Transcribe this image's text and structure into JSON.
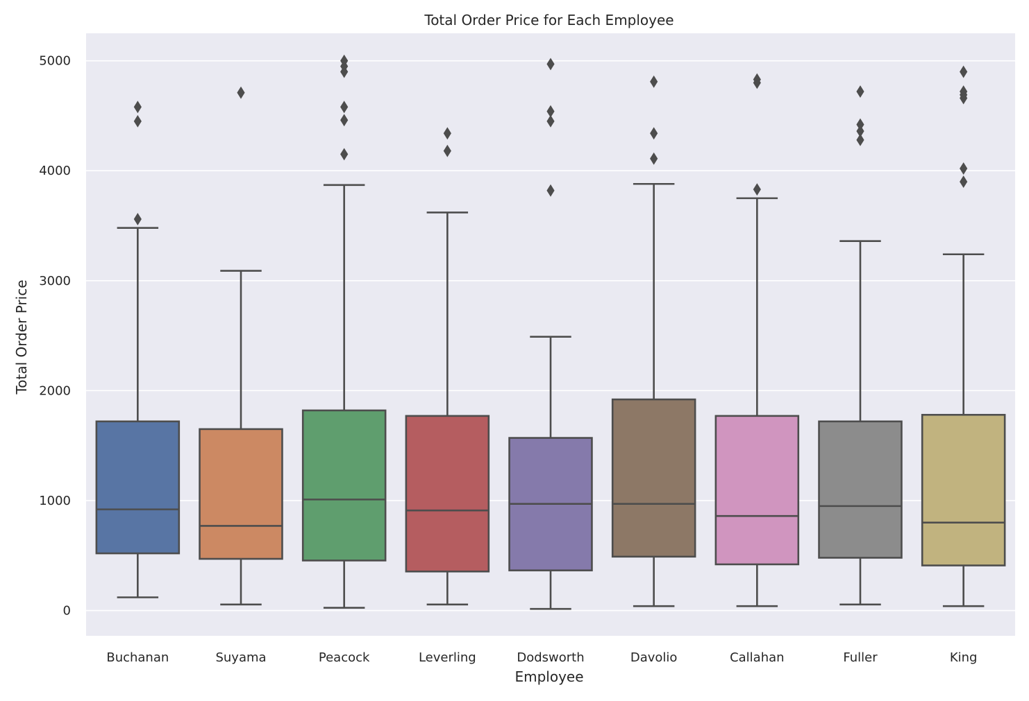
{
  "chart_data": {
    "type": "box",
    "title": "Total Order Price for Each Employee",
    "xlabel": "Employee",
    "ylabel": "Total Order Price",
    "ylim": [
      -230,
      5250
    ],
    "yticks": [
      0,
      1000,
      2000,
      3000,
      4000,
      5000
    ],
    "grid": true,
    "categories": [
      "Buchanan",
      "Suyama",
      "Peacock",
      "Leverling",
      "Dodsworth",
      "Davolio",
      "Callahan",
      "Fuller",
      "King"
    ],
    "colors": [
      "#5875a4",
      "#cc8963",
      "#5f9e6e",
      "#b55d60",
      "#857aab",
      "#8d7866",
      "#d095bf",
      "#8c8c8c",
      "#c1b37f"
    ],
    "boxes": [
      {
        "name": "Buchanan",
        "whislo": 120,
        "q1": 520,
        "med": 920,
        "q3": 1720,
        "whishi": 3480,
        "fliers": [
          3560,
          4450,
          4580
        ]
      },
      {
        "name": "Suyama",
        "whislo": 55,
        "q1": 470,
        "med": 770,
        "q3": 1650,
        "whishi": 3090,
        "fliers": [
          4710
        ]
      },
      {
        "name": "Peacock",
        "whislo": 25,
        "q1": 455,
        "med": 1010,
        "q3": 1820,
        "whishi": 3870,
        "fliers": [
          4150,
          4460,
          4580,
          4900,
          4950,
          5000
        ]
      },
      {
        "name": "Leverling",
        "whislo": 55,
        "q1": 355,
        "med": 910,
        "q3": 1770,
        "whishi": 3620,
        "fliers": [
          4180,
          4340
        ]
      },
      {
        "name": "Dodsworth",
        "whislo": 15,
        "q1": 365,
        "med": 970,
        "q3": 1570,
        "whishi": 2490,
        "fliers": [
          3820,
          4450,
          4540,
          4970
        ]
      },
      {
        "name": "Davolio",
        "whislo": 40,
        "q1": 490,
        "med": 970,
        "q3": 1920,
        "whishi": 3880,
        "fliers": [
          4110,
          4340,
          4810
        ]
      },
      {
        "name": "Callahan",
        "whislo": 40,
        "q1": 420,
        "med": 860,
        "q3": 1770,
        "whishi": 3750,
        "fliers": [
          3830,
          4800,
          4830
        ]
      },
      {
        "name": "Fuller",
        "whislo": 55,
        "q1": 480,
        "med": 950,
        "q3": 1720,
        "whishi": 3360,
        "fliers": [
          4280,
          4360,
          4420,
          4720
        ]
      },
      {
        "name": "King",
        "whislo": 40,
        "q1": 410,
        "med": 800,
        "q3": 1780,
        "whishi": 3240,
        "fliers": [
          3900,
          4020,
          4660,
          4690,
          4720,
          4900
        ]
      }
    ],
    "style": {
      "background": "#eaeaf2",
      "grid_color": "#ffffff",
      "line_color": "#4d4d4d",
      "text_color": "#262626"
    }
  }
}
